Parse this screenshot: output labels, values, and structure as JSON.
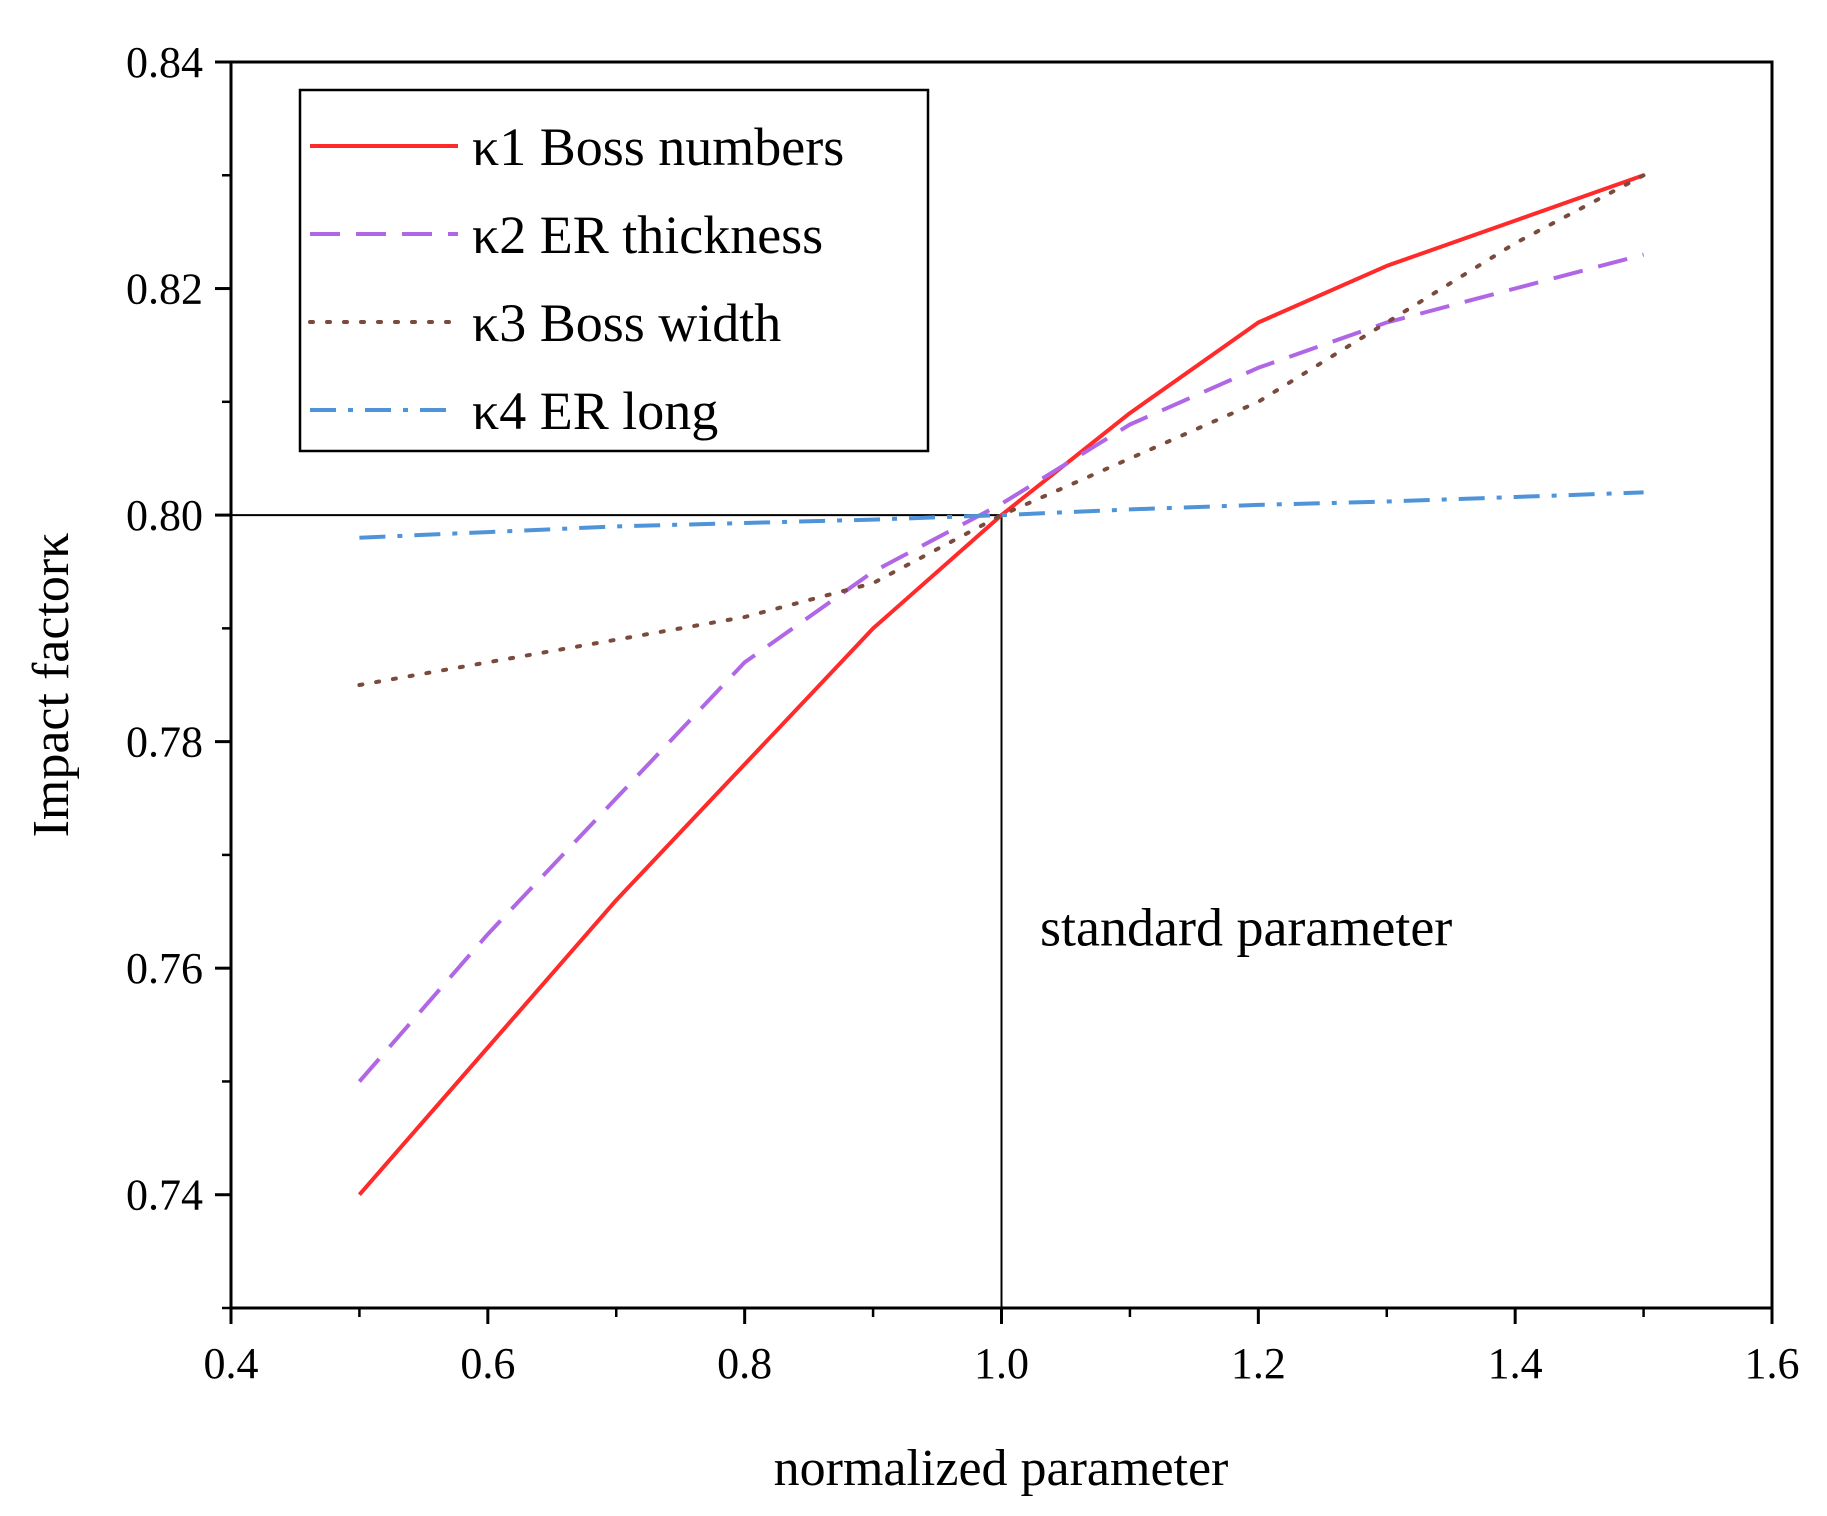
{
  "chart_data": {
    "type": "line",
    "title": "",
    "xlabel": "normalized parameter",
    "ylabel": "Impact factorκ",
    "xlim": [
      0.4,
      1.6
    ],
    "ylim": [
      0.73,
      0.84
    ],
    "xticks": [
      "0.4",
      "0.6",
      "0.8",
      "1.0",
      "1.2",
      "1.4",
      "1.6"
    ],
    "xtick_values": [
      0.4,
      0.6,
      0.8,
      1.0,
      1.2,
      1.4,
      1.6
    ],
    "yticks": [
      "0.74",
      "0.76",
      "0.78",
      "0.80",
      "0.82",
      "0.84"
    ],
    "ytick_values": [
      0.74,
      0.76,
      0.78,
      0.8,
      0.82,
      0.84
    ],
    "grid": false,
    "legend_position": "top-left",
    "reference_lines": {
      "x": 1.0,
      "y": 0.8
    },
    "annotation": "standard parameter",
    "annotation_anchor": {
      "x": 1.03,
      "y": 0.762
    },
    "series": [
      {
        "name": "κ1 Boss numbers",
        "color": "#ff2a2a",
        "style": "solid",
        "x": [
          0.5,
          0.6,
          0.7,
          0.8,
          0.9,
          1.0,
          1.1,
          1.2,
          1.3,
          1.4,
          1.5
        ],
        "y": [
          0.74,
          0.753,
          0.766,
          0.778,
          0.79,
          0.8,
          0.809,
          0.817,
          0.822,
          0.826,
          0.83
        ]
      },
      {
        "name": "κ2 ER thickness",
        "color": "#b067e6",
        "style": "dashed",
        "x": [
          0.5,
          0.6,
          0.7,
          0.8,
          0.9,
          1.0,
          1.1,
          1.2,
          1.3,
          1.4,
          1.5
        ],
        "y": [
          0.75,
          0.763,
          0.775,
          0.787,
          0.795,
          0.801,
          0.808,
          0.813,
          0.817,
          0.82,
          0.823
        ]
      },
      {
        "name": "κ3 Boss width",
        "color": "#7a4a3c",
        "style": "dotted",
        "x": [
          0.5,
          0.6,
          0.7,
          0.8,
          0.9,
          1.0,
          1.1,
          1.2,
          1.3,
          1.4,
          1.5
        ],
        "y": [
          0.785,
          0.787,
          0.789,
          0.791,
          0.794,
          0.8,
          0.805,
          0.81,
          0.817,
          0.824,
          0.83
        ]
      },
      {
        "name": "κ4 ER long",
        "color": "#4f94d8",
        "style": "dashdot",
        "x": [
          0.5,
          0.6,
          0.7,
          0.8,
          0.9,
          1.0,
          1.1,
          1.2,
          1.3,
          1.4,
          1.5
        ],
        "y": [
          0.798,
          0.7985,
          0.799,
          0.7993,
          0.7996,
          0.8,
          0.8005,
          0.8009,
          0.8012,
          0.8016,
          0.802
        ]
      }
    ]
  }
}
